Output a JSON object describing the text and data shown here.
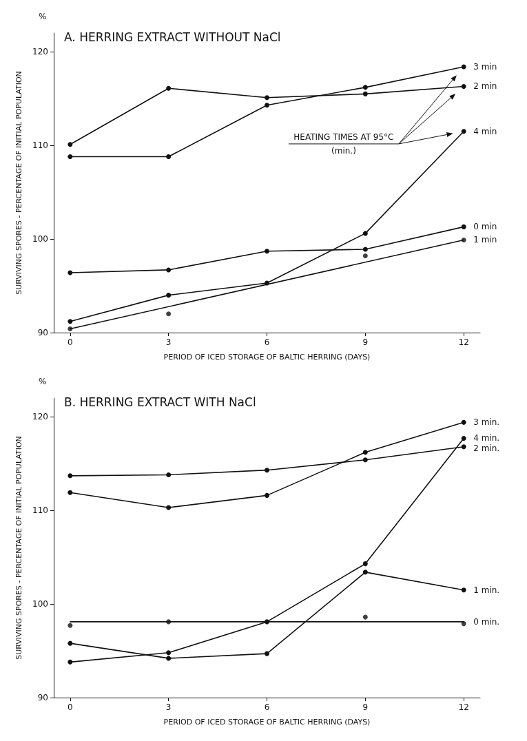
{
  "chart_data": [
    {
      "type": "line",
      "title": "A. HERRING EXTRACT WITHOUT NaCl",
      "xlabel": "PERIOD OF ICED STORAGE OF BALTIC HERRING (DAYS)",
      "ylabel": "SURVIVING SPORES - PERCENTAGE OF INITIAL POPULATION",
      "x": [
        0,
        3,
        6,
        9,
        12
      ],
      "xlim": [
        -0.5,
        12.5
      ],
      "xticks": [
        0,
        3,
        6,
        9,
        12
      ],
      "ylim": [
        90,
        122
      ],
      "yticks": [
        90,
        100,
        110,
        120
      ],
      "grid": false,
      "legend": false,
      "marker": "circle",
      "line_style": "solid",
      "annotations": [
        "%",
        "HEATING TIMES AT 95°C\n(min.)"
      ],
      "series": [
        {
          "name": "3 min",
          "color": "#111111",
          "values": [
            108.8,
            108.8,
            114.3,
            116.2,
            118.4
          ]
        },
        {
          "name": "2 min",
          "color": "#111111",
          "values": [
            110.1,
            116.1,
            115.1,
            115.5,
            116.3
          ]
        },
        {
          "name": "4 min",
          "color": "#111111",
          "values": [
            91.2,
            94.0,
            95.3,
            100.6,
            111.5
          ]
        },
        {
          "name": "0 min",
          "color": "#111111",
          "values": [
            96.4,
            96.7,
            98.7,
            98.9,
            101.3
          ]
        },
        {
          "name": "1 min",
          "color": "#111111",
          "x": [
            0,
            12
          ],
          "values": [
            90.4,
            99.9
          ],
          "marker": "none"
        },
        {
          "type": "scatter",
          "color": "#111111",
          "x": [
            0,
            3,
            6,
            9,
            12
          ],
          "values": [
            90.4,
            92.0,
            null,
            98.2,
            99.9
          ]
        }
      ]
    },
    {
      "type": "line",
      "title": "B. HERRING EXTRACT WITH NaCl",
      "xlabel": "PERIOD OF ICED STORAGE OF BALTIC HERRING (DAYS)",
      "ylabel": "SURVIVING SPORES - PERCENTAGE OF INITIAL POPULATION",
      "x": [
        0,
        3,
        6,
        9,
        12
      ],
      "xlim": [
        -0.5,
        12.5
      ],
      "xticks": [
        0,
        3,
        6,
        9,
        12
      ],
      "ylim": [
        90,
        122
      ],
      "yticks": [
        90,
        100,
        110,
        120
      ],
      "grid": false,
      "legend": false,
      "marker": "circle",
      "line_style": "solid",
      "annotations": [
        "%"
      ],
      "series": [
        {
          "name": "3 min.",
          "color": "#111111",
          "values": [
            111.9,
            110.3,
            111.6,
            116.2,
            119.4
          ]
        },
        {
          "name": "2 min.",
          "color": "#111111",
          "values": [
            113.7,
            113.8,
            114.3,
            115.4,
            116.8
          ]
        },
        {
          "name": "4 min.",
          "color": "#111111",
          "values": [
            93.8,
            94.8,
            98.1,
            104.3,
            117.7
          ]
        },
        {
          "name": "1 min.",
          "color": "#111111",
          "values": [
            95.8,
            94.2,
            94.7,
            103.4,
            101.5
          ]
        },
        {
          "name": "0 min.",
          "color": "#111111",
          "x": [
            0,
            12
          ],
          "values": [
            98.1,
            98.1
          ],
          "marker": "none"
        },
        {
          "type": "scatter",
          "color": "#111111",
          "x": [
            0,
            3,
            6,
            9,
            12
          ],
          "values": [
            97.7,
            98.1,
            null,
            98.6,
            97.9
          ]
        }
      ]
    }
  ]
}
